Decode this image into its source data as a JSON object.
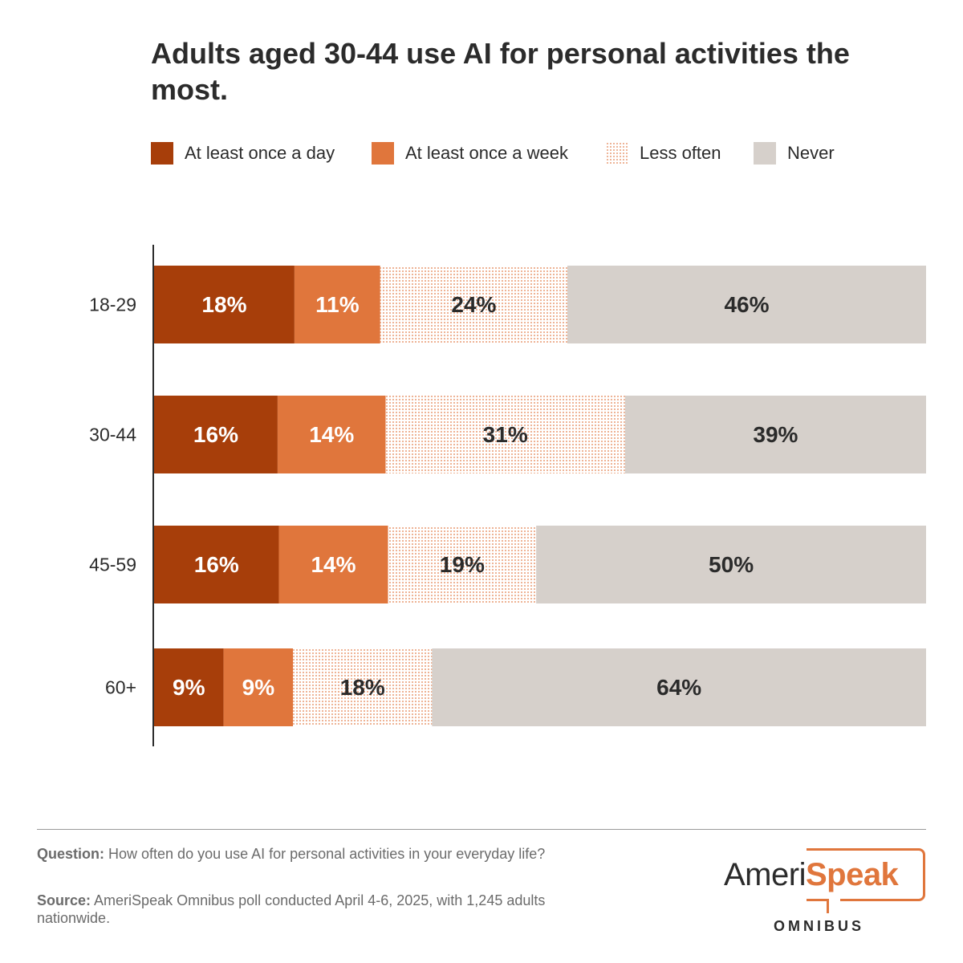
{
  "title": "Adults aged 30-44 use AI for personal activities the most.",
  "colors": {
    "daily": "#a73e0a",
    "weekly": "#e0763c",
    "less_often_dots": "#e37d49",
    "never": "#d6d0cb",
    "text_dark": "#2b2b2b"
  },
  "legend": [
    {
      "key": "daily",
      "label": "At least once a day"
    },
    {
      "key": "weekly",
      "label": "At least once a week"
    },
    {
      "key": "less_often",
      "label": "Less often"
    },
    {
      "key": "never",
      "label": "Never"
    }
  ],
  "chart_data": {
    "type": "bar",
    "orientation": "horizontal",
    "stacked": true,
    "title": "Adults aged 30-44 use AI for personal activities the most.",
    "categories": [
      "18-29",
      "30-44",
      "45-59",
      "60+"
    ],
    "series": [
      {
        "name": "At least once a day",
        "key": "daily",
        "values": [
          18,
          16,
          16,
          9
        ]
      },
      {
        "name": "At least once a week",
        "key": "weekly",
        "values": [
          11,
          14,
          14,
          9
        ]
      },
      {
        "name": "Less often",
        "key": "less_often",
        "values": [
          24,
          31,
          19,
          18
        ]
      },
      {
        "name": "Never",
        "key": "never",
        "values": [
          46,
          39,
          50,
          64
        ]
      }
    ],
    "value_suffix": "%",
    "xlim": [
      0,
      100
    ],
    "legend_position": "top"
  },
  "footer": {
    "question_label": "Question:",
    "question_text": "How often do you use AI for personal activities in your everyday life?",
    "source_label": "Source:",
    "source_text": "AmeriSpeak Omnibus poll conducted April 4-6, 2025, with 1,245 adults nationwide."
  },
  "logo": {
    "part1": "Ameri",
    "part2": "Speak",
    "sub": "OMNIBUS"
  }
}
